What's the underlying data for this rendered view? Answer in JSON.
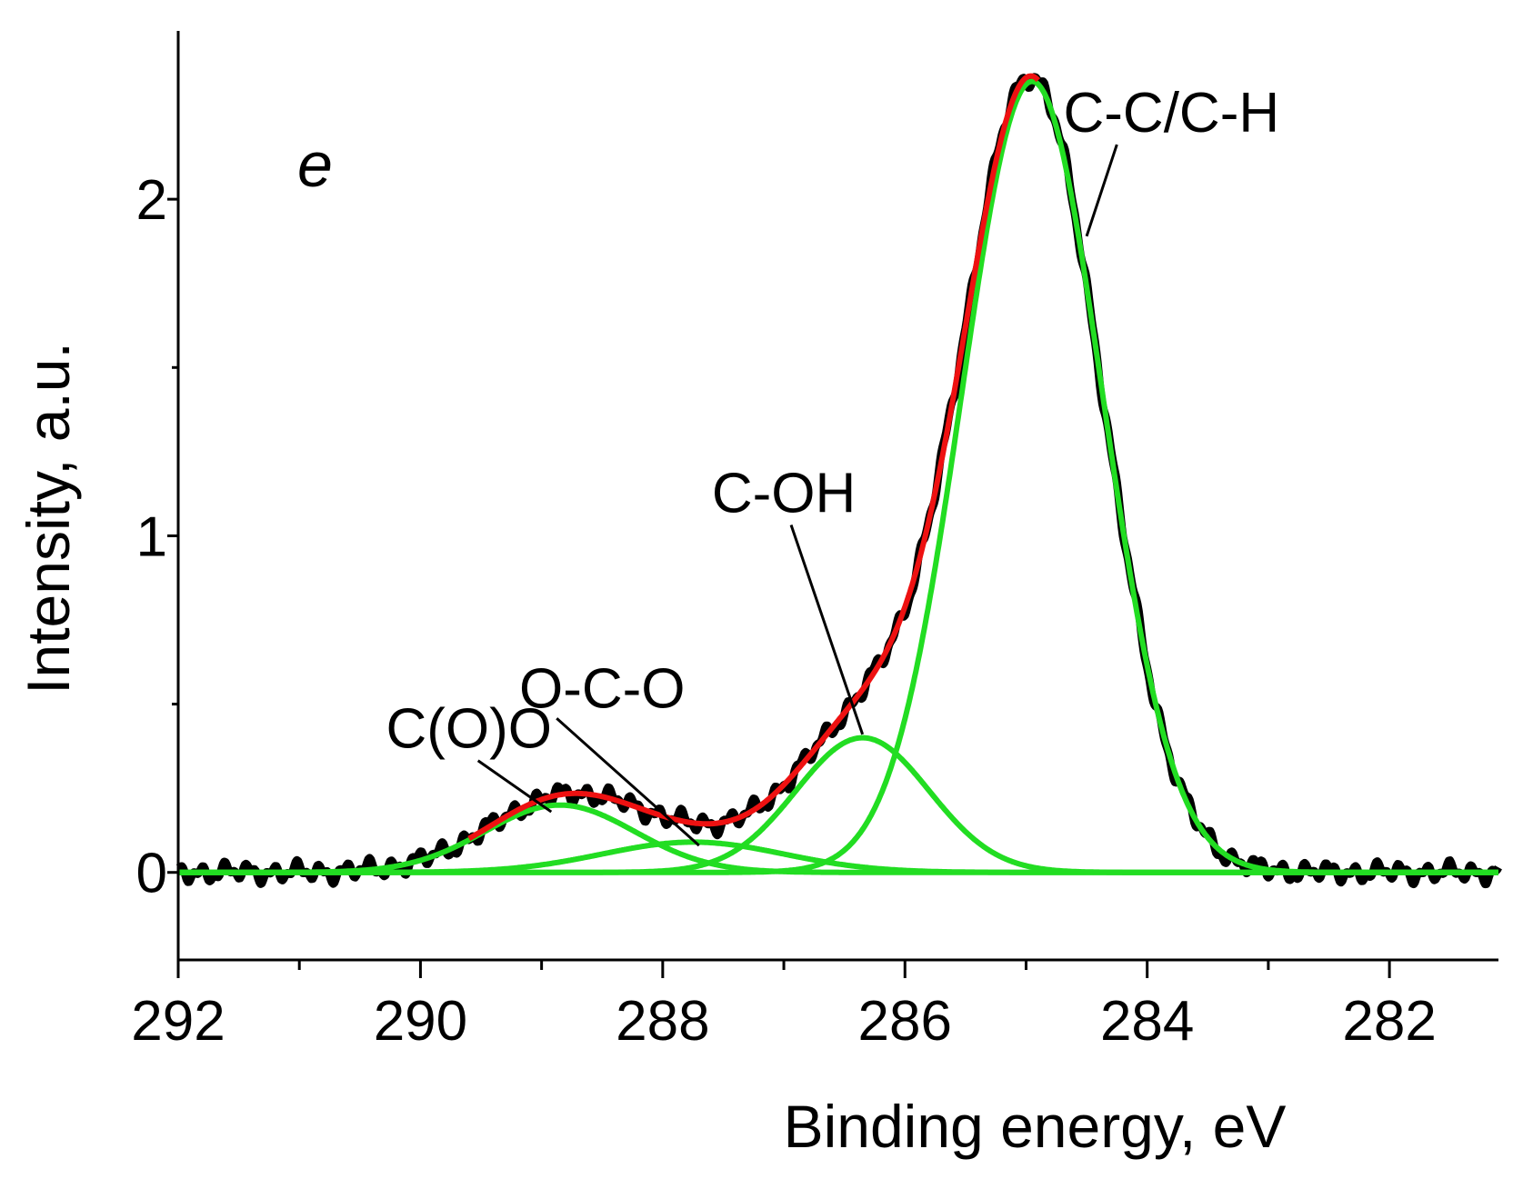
{
  "chart_data": {
    "type": "line",
    "panel_label": "e",
    "xlabel": "Binding energy, eV",
    "ylabel": "Intensity, a.u.",
    "x_reversed": true,
    "xlim": [
      292,
      281.1
    ],
    "ylim": [
      -0.26,
      2.5
    ],
    "xticks": [
      {
        "value": 292,
        "label": "292"
      },
      {
        "value": 290,
        "label": "290"
      },
      {
        "value": 288,
        "label": "288"
      },
      {
        "value": 286,
        "label": "286"
      },
      {
        "value": 284,
        "label": "284"
      },
      {
        "value": 282,
        "label": "282"
      }
    ],
    "xminor_ticks": [
      291,
      289,
      287,
      285,
      283
    ],
    "yticks": [
      {
        "value": 0,
        "label": "0"
      },
      {
        "value": 1,
        "label": "1"
      },
      {
        "value": 2,
        "label": "2"
      }
    ],
    "yminor_ticks": [
      0.5,
      1.5
    ],
    "series": [
      {
        "name": "C(O)O",
        "kind": "component",
        "color": "#22dd22",
        "center": 288.85,
        "amplitude": 0.2,
        "sigma": 0.62,
        "annotation": {
          "text": "C(O)O",
          "x": 289.6,
          "y": 0.37,
          "arrow_to": [
            288.92,
            0.18
          ]
        }
      },
      {
        "name": "O-C-O",
        "kind": "component",
        "color": "#22dd22",
        "center": 287.75,
        "amplitude": 0.09,
        "sigma": 0.75,
        "annotation": {
          "text": "O-C-O",
          "x": 288.5,
          "y": 0.49,
          "arrow_to": [
            287.7,
            0.08
          ]
        }
      },
      {
        "name": "C-OH",
        "kind": "component",
        "color": "#22dd22",
        "center": 286.35,
        "amplitude": 0.4,
        "sigma": 0.55,
        "annotation": {
          "text": "C-OH",
          "x": 287.0,
          "y": 1.07,
          "arrow_to": [
            286.35,
            0.41
          ]
        }
      },
      {
        "name": "C-C/C-H",
        "kind": "component",
        "color": "#22dd22",
        "center": 284.95,
        "amplitude": 2.35,
        "sigma": 0.58,
        "annotation": {
          "text": "C-C/C-H",
          "x": 283.8,
          "y": 2.2,
          "arrow_to": [
            284.5,
            1.89
          ]
        }
      },
      {
        "name": "Envelope fit",
        "kind": "envelope",
        "color": "#ee1111",
        "x_range": [
          289.6,
          284.9
        ]
      },
      {
        "name": "Experimental",
        "kind": "measured",
        "color": "#000000",
        "noise_amplitude": 0.018
      }
    ]
  }
}
